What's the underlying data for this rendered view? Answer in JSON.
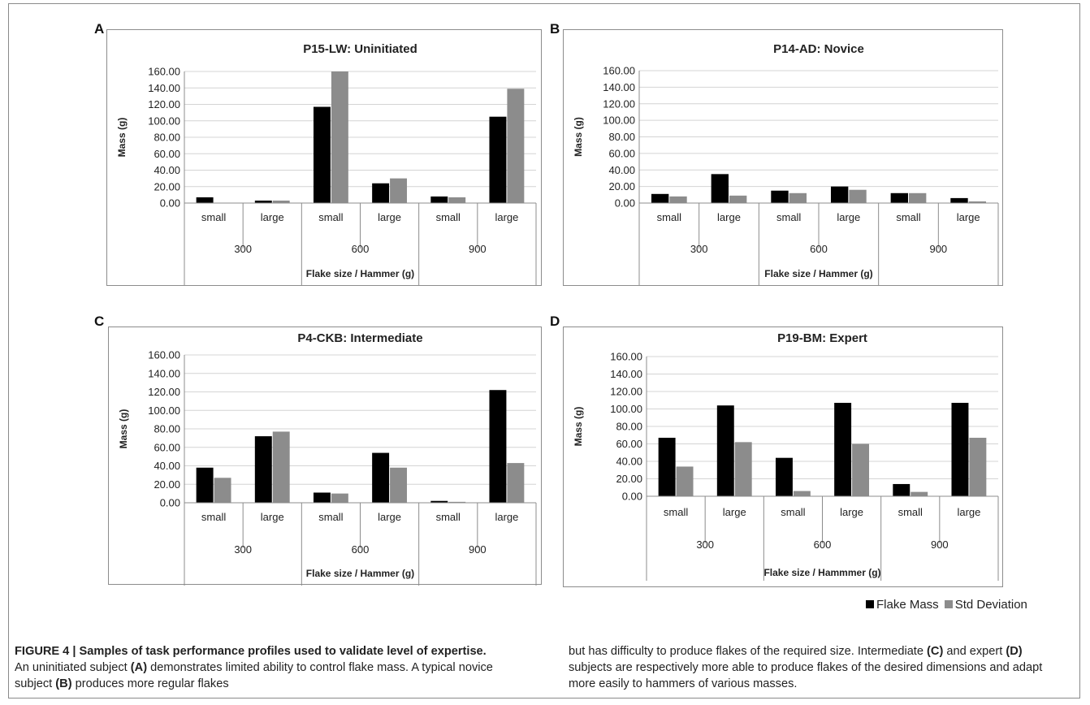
{
  "panel_labels": [
    "A",
    "B",
    "C",
    "D"
  ],
  "legend": {
    "items": [
      {
        "label": "Flake Mass",
        "color": "#000000"
      },
      {
        "label": "Std Deviation",
        "color": "#8c8c8c"
      }
    ]
  },
  "caption": {
    "label": "FIGURE 4 | ",
    "title": "Samples of task performance profiles used to validate level of expertise.",
    "t1": " An uninitiated subject ",
    "r1": "(A)",
    "t2": " demonstrates limited ability to control flake mass. A typical novice subject ",
    "r2": "(B)",
    "t3": " produces more regular flakes but has difficulty to produce flakes of the required size. Intermediate ",
    "r3": "(C)",
    "t4": " and expert ",
    "r4": "(D)",
    "t5": " subjects are respectively more able to produce flakes of the desired dimensions and adapt more easily to hammers of various masses."
  },
  "chart_data": [
    {
      "type": "bar",
      "panel": "A",
      "title": "P15-LW: Uninitiated",
      "xlabel": "Flake size / Hammer (g)",
      "ylabel": "Mass (g)",
      "ylim": [
        0,
        160
      ],
      "yticks": [
        "0.00",
        "20.00",
        "40.00",
        "60.00",
        "80.00",
        "100.00",
        "120.00",
        "140.00",
        "160.00"
      ],
      "categories": [
        "small",
        "large",
        "small",
        "large",
        "small",
        "large"
      ],
      "groups": [
        "300",
        "600",
        "900"
      ],
      "series": [
        {
          "name": "Flake Mass",
          "values": [
            7,
            3,
            117,
            24,
            8,
            105
          ]
        },
        {
          "name": "Std Deviation",
          "values": [
            0,
            3,
            160,
            30,
            7,
            139
          ]
        }
      ]
    },
    {
      "type": "bar",
      "panel": "B",
      "title": "P14-AD: Novice",
      "xlabel": "Flake size / Hammer (g)",
      "ylabel": "Mass (g)",
      "ylim": [
        0,
        160
      ],
      "yticks": [
        "0.00",
        "20.00",
        "40.00",
        "60.00",
        "80.00",
        "100.00",
        "120.00",
        "140.00",
        "160.00"
      ],
      "categories": [
        "small",
        "large",
        "small",
        "large",
        "small",
        "large"
      ],
      "groups": [
        "300",
        "600",
        "900"
      ],
      "series": [
        {
          "name": "Flake Mass",
          "values": [
            11,
            35,
            15,
            20,
            12,
            6
          ]
        },
        {
          "name": "Std Deviation",
          "values": [
            8,
            9,
            12,
            16,
            12,
            2
          ]
        }
      ]
    },
    {
      "type": "bar",
      "panel": "C",
      "title": "P4-CKB: Intermediate",
      "xlabel": "Flake size / Hammer (g)",
      "ylabel": "Mass (g)",
      "ylim": [
        0,
        160
      ],
      "yticks": [
        "0.00",
        "20.00",
        "40.00",
        "60.00",
        "80.00",
        "100.00",
        "120.00",
        "140.00",
        "160.00"
      ],
      "categories": [
        "small",
        "large",
        "small",
        "large",
        "small",
        "large"
      ],
      "groups": [
        "300",
        "600",
        "900"
      ],
      "series": [
        {
          "name": "Flake Mass",
          "values": [
            38,
            72,
            11,
            54,
            2,
            122
          ]
        },
        {
          "name": "Std Deviation",
          "values": [
            27,
            77,
            10,
            38,
            1,
            43
          ]
        }
      ]
    },
    {
      "type": "bar",
      "panel": "D",
      "title": "P19-BM: Expert",
      "xlabel": "Flake size / Hammmer (g)",
      "ylabel": "Mass (g)",
      "ylim": [
        0,
        160
      ],
      "yticks": [
        "0.00",
        "20.00",
        "40.00",
        "60.00",
        "80.00",
        "100.00",
        "120.00",
        "140.00",
        "160.00"
      ],
      "categories": [
        "small",
        "large",
        "small",
        "large",
        "small",
        "large"
      ],
      "groups": [
        "300",
        "600",
        "900"
      ],
      "series": [
        {
          "name": "Flake Mass",
          "values": [
            67,
            104,
            44,
            107,
            14,
            107
          ]
        },
        {
          "name": "Std Deviation",
          "values": [
            34,
            62,
            6,
            60,
            5,
            67
          ]
        }
      ]
    }
  ]
}
